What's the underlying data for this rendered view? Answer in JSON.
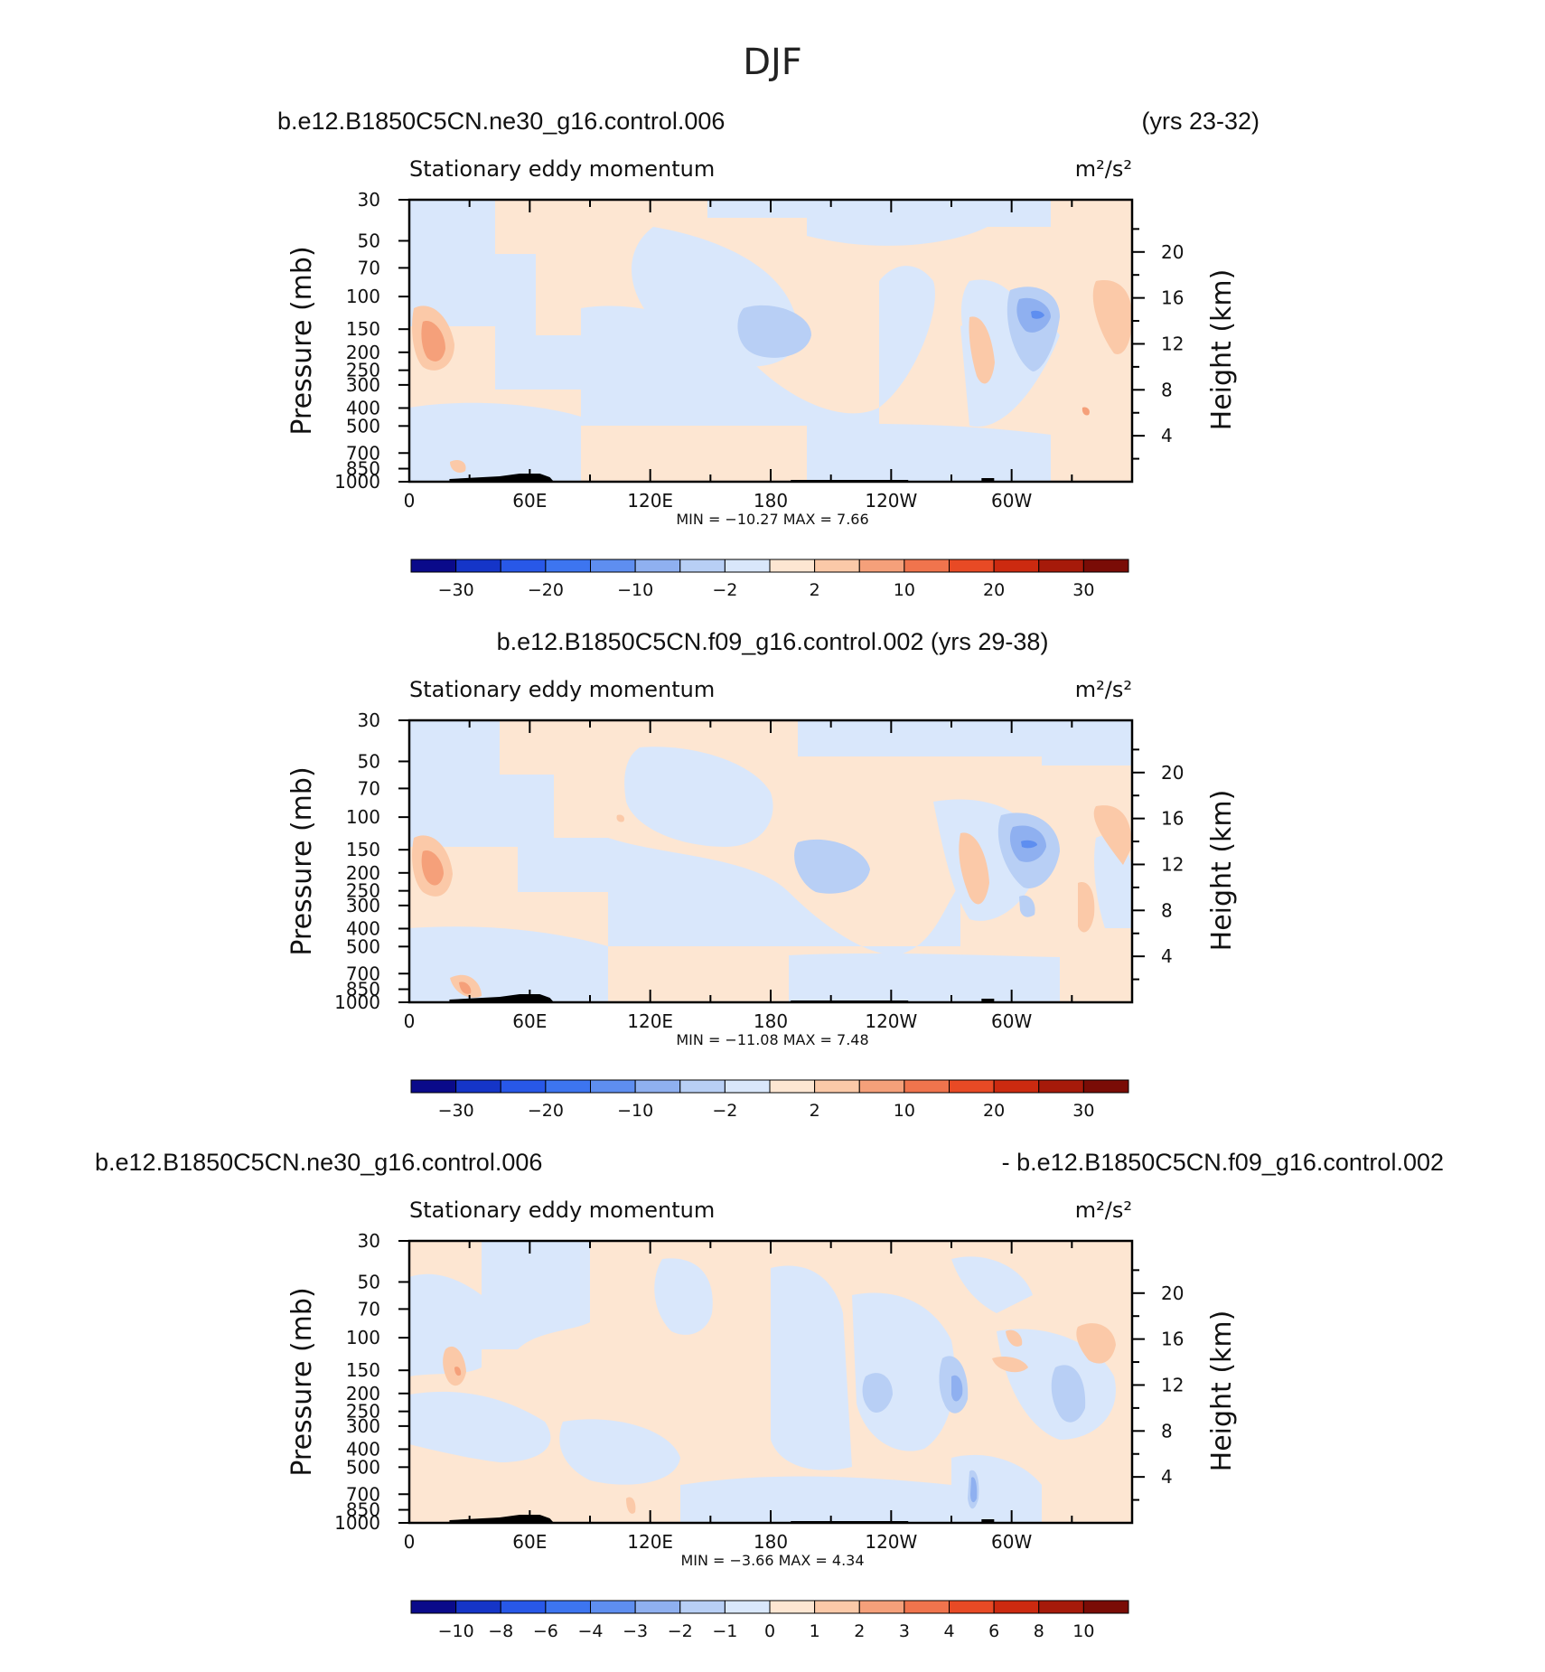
{
  "page_title": "DJF",
  "x_ticks": [
    "0",
    "60E",
    "120E",
    "180",
    "120W",
    "60W"
  ],
  "y_ticks_left": [
    "30",
    "50",
    "70",
    "100",
    "150",
    "200",
    "250",
    "300",
    "400",
    "500",
    "700",
    "850",
    "1000"
  ],
  "y_ticks_right": [
    "20",
    "16",
    "12",
    "8",
    "4"
  ],
  "cb_colors_main": [
    "#0a0a8a",
    "#1535c8",
    "#2858e8",
    "#3d75f0",
    "#5e8ef0",
    "#8fb0f0",
    "#b8cff5",
    "#d9e7fb",
    "#fde6d2",
    "#fbc9a8",
    "#f5a07a",
    "#f0744d",
    "#e84a25",
    "#cc2a10",
    "#a61a0a",
    "#7a0c06"
  ],
  "cb_colors_diff": [
    "#0a0a8a",
    "#1535c8",
    "#2858e8",
    "#3d75f0",
    "#5e8ef0",
    "#8fb0f0",
    "#b8cff5",
    "#d9e7fb",
    "#fde6d2",
    "#fbc9a8",
    "#f5a07a",
    "#f0744d",
    "#e84a25",
    "#cc2a10",
    "#a61a0a",
    "#7a0c06"
  ],
  "chart_data": [
    {
      "type": "heatmap",
      "left_title": "b.e12.B1850C5CN.ne30_g16.control.006",
      "right_title": "(yrs 23-32)",
      "center_title": "",
      "long_name": "Stationary eddy momentum",
      "units": "m²/s²",
      "xlabel": "",
      "ylabel": "Pressure (mb)",
      "y2label": "Height (km)",
      "stats": "MIN =  −10.27   MAX =     7.66",
      "min": -10.27,
      "max": 7.66,
      "colorbar_labels": [
        "−30",
        "−20",
        "−10",
        "−2",
        "2",
        "10",
        "20",
        "30"
      ],
      "colorbar_label_positions": [
        1,
        3,
        5,
        7,
        9,
        11,
        13,
        15
      ]
    },
    {
      "type": "heatmap",
      "left_title": "",
      "right_title": "",
      "center_title": "b.e12.B1850C5CN.f09_g16.control.002 (yrs 29-38)",
      "long_name": "Stationary eddy momentum",
      "units": "m²/s²",
      "xlabel": "",
      "ylabel": "Pressure (mb)",
      "y2label": "Height (km)",
      "stats": "MIN =  −11.08   MAX =     7.48",
      "min": -11.08,
      "max": 7.48,
      "colorbar_labels": [
        "−30",
        "−20",
        "−10",
        "−2",
        "2",
        "10",
        "20",
        "30"
      ],
      "colorbar_label_positions": [
        1,
        3,
        5,
        7,
        9,
        11,
        13,
        15
      ]
    },
    {
      "type": "heatmap",
      "left_title": "b.e12.B1850C5CN.ne30_g16.control.006",
      "right_title": "- b.e12.B1850C5CN.f09_g16.control.002",
      "center_title": "",
      "long_name": "Stationary eddy momentum",
      "units": "m²/s²",
      "xlabel": "",
      "ylabel": "Pressure (mb)",
      "y2label": "Height (km)",
      "stats": "MIN =    −3.66   MAX =     4.34",
      "min": -3.66,
      "max": 4.34,
      "colorbar_labels": [
        "−10",
        "−8",
        "−6",
        "−4",
        "−3",
        "−2",
        "−1",
        "0",
        "1",
        "2",
        "3",
        "4",
        "6",
        "8",
        "10"
      ],
      "colorbar_label_positions": [
        1,
        2,
        3,
        4,
        5,
        6,
        7,
        8,
        9,
        10,
        11,
        12,
        13,
        14,
        15
      ]
    }
  ]
}
